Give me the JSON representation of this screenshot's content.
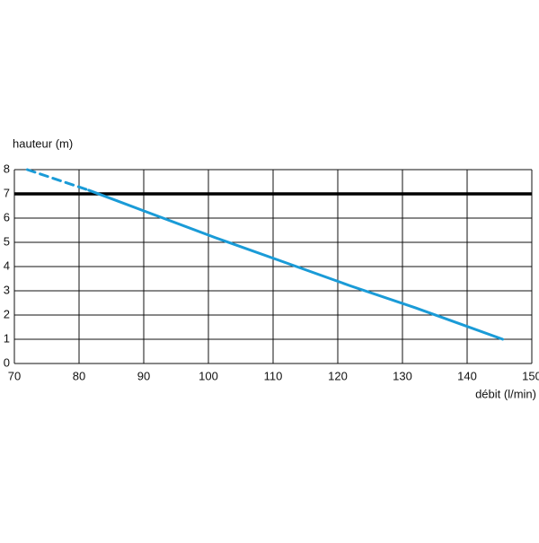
{
  "chart_data": {
    "type": "line",
    "y_label": "hauteur (m)",
    "x_label": "débit (l/min)",
    "xlim": [
      70,
      150
    ],
    "xticks": [
      70,
      80,
      90,
      100,
      110,
      120,
      130,
      140,
      150
    ],
    "ylim": [
      0,
      8
    ],
    "yticks": [
      0,
      1,
      2,
      3,
      4,
      5,
      6,
      7,
      8
    ],
    "grid": true,
    "series": [
      {
        "color": "#1a9bd7",
        "line_style": "dashed",
        "x": [
          72,
          81.5
        ],
        "values": [
          8,
          7.15
        ]
      },
      {
        "color": "#1a9bd7",
        "line_style": "solid",
        "x": [
          81.5,
          91,
          101,
          111,
          122,
          132,
          145.5
        ],
        "values": [
          7.15,
          6.2,
          5.2,
          4.25,
          3.2,
          2.3,
          1
        ]
      }
    ],
    "hlines": [
      {
        "value": 7,
        "color": "#000000"
      }
    ]
  }
}
